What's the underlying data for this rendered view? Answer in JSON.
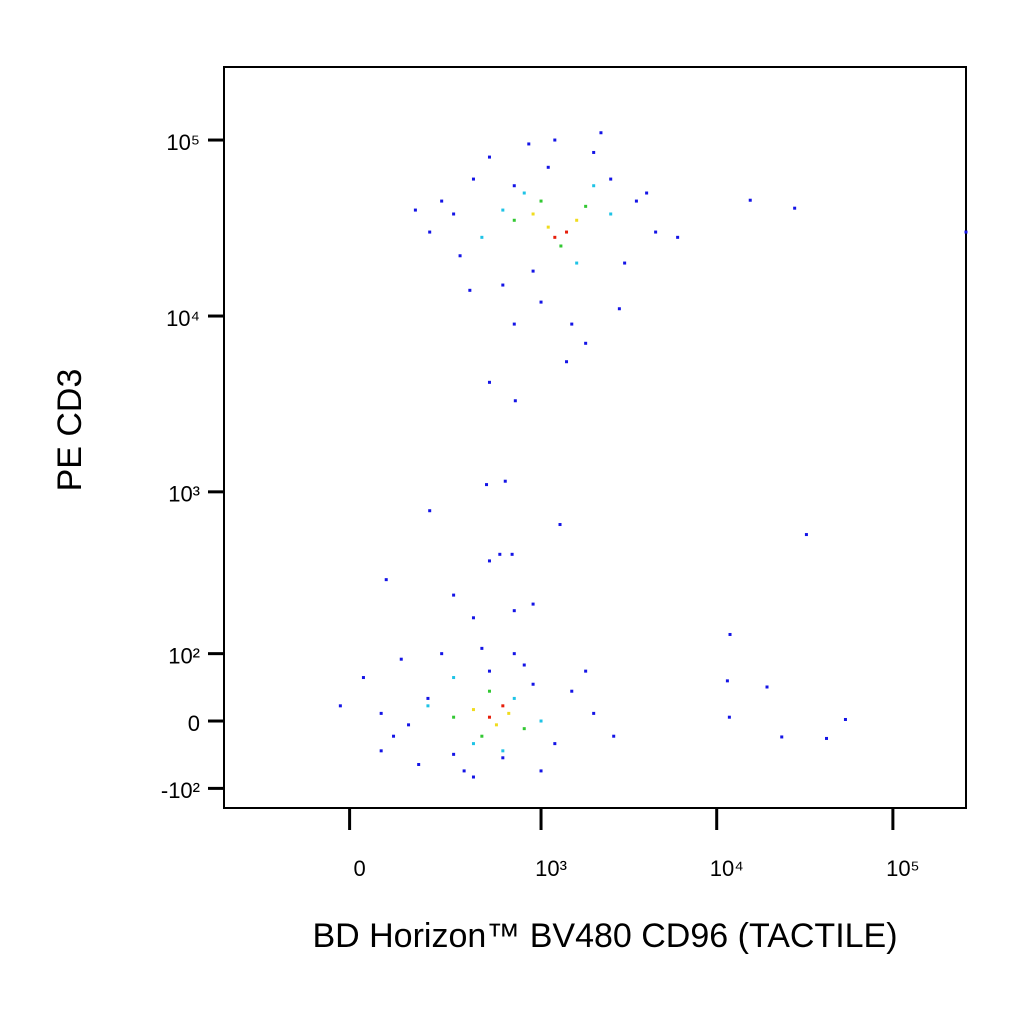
{
  "chart_data": {
    "type": "scatter",
    "x_label": "BD Horizon™ BV480 CD96 (TACTILE)",
    "y_label": "PE  CD3",
    "scale": "biexponential",
    "xlim": [
      -410,
      260000
    ],
    "ylim": [
      -140,
      260000
    ],
    "xticks": [
      0,
      {
        "value": 1000,
        "label": "10³"
      },
      {
        "value": 10000,
        "label": "10⁴"
      },
      {
        "value": 100000,
        "label": "10⁵"
      }
    ],
    "yticks": [
      {
        "value": -100,
        "label": "-10²"
      },
      0,
      {
        "value": 100,
        "label": "10²"
      },
      {
        "value": 1000,
        "label": "10³"
      },
      {
        "value": 10000,
        "label": "10⁴"
      },
      {
        "value": 100000,
        "label": "10⁵"
      }
    ],
    "series": [
      {
        "color": "#1414e6",
        "x": [
          206,
          250,
          330,
          400,
          500,
          600,
          700,
          850,
          1000,
          1200,
          1500,
          2000,
          2500,
          3000,
          3500,
          4500,
          6000,
          2800,
          1800,
          1400,
          900,
          380,
          300,
          2200,
          160,
          4000,
          1100,
          700,
          -20,
          30,
          70,
          120,
          170,
          250,
          350,
          450,
          600,
          800,
          1200,
          1500,
          2000,
          2600,
          70,
          100,
          1000,
          700,
          200,
          300,
          1800,
          400,
          900,
          140,
          500,
          300,
          500,
          700,
          400,
          900,
          15500,
          27700,
          260000,
          32300,
          11900,
          1285,
          500,
          710,
          480,
          620,
          206,
          82,
          576,
          680,
          19300,
          53800,
          42000,
          23400,
          11500,
          11800
        ],
        "y": [
          30000,
          45000,
          22000,
          60000,
          80000,
          15000,
          55000,
          95000,
          12000,
          100000,
          9000,
          85000,
          60000,
          20000,
          45000,
          30000,
          28000,
          11000,
          7000,
          5500,
          18000,
          14000,
          38000,
          110000,
          40000,
          50000,
          70000,
          9000,
          20,
          60,
          -40,
          90,
          -60,
          100,
          -70,
          110,
          -50,
          80,
          -30,
          40,
          10,
          -20,
          10,
          -20,
          -70,
          100,
          30,
          -45,
          70,
          -80,
          50,
          -5,
          70,
          250,
          400,
          200,
          180,
          220,
          45500,
          41000,
          30000,
          569,
          139,
          650,
          4200,
          3300,
          1100,
          1150,
          780,
          310,
          437,
          437,
          46,
          2,
          -23,
          -21,
          55,
          5
        ]
      },
      {
        "color": "#1ec3e6",
        "x": [
          450,
          800,
          1600,
          2500,
          600,
          2000,
          200,
          400,
          700,
          1000,
          300,
          600
        ],
        "y": [
          28000,
          50000,
          20000,
          38000,
          40000,
          55000,
          20,
          -30,
          30,
          0,
          60,
          -40
        ]
      },
      {
        "color": "#32c832",
        "x": [
          700,
          1300,
          1800,
          1000,
          300,
          500,
          800,
          450
        ],
        "y": [
          35000,
          25000,
          42000,
          45000,
          5,
          40,
          -10,
          -20
        ]
      },
      {
        "color": "#f0dc1e",
        "x": [
          1100,
          1600,
          900,
          400,
          650,
          550
        ],
        "y": [
          32000,
          35000,
          38000,
          15,
          10,
          -5
        ]
      },
      {
        "color": "#e61e0a",
        "x": [
          1400,
          1200,
          500,
          600
        ],
        "y": [
          30000,
          28000,
          5,
          20
        ]
      }
    ]
  }
}
